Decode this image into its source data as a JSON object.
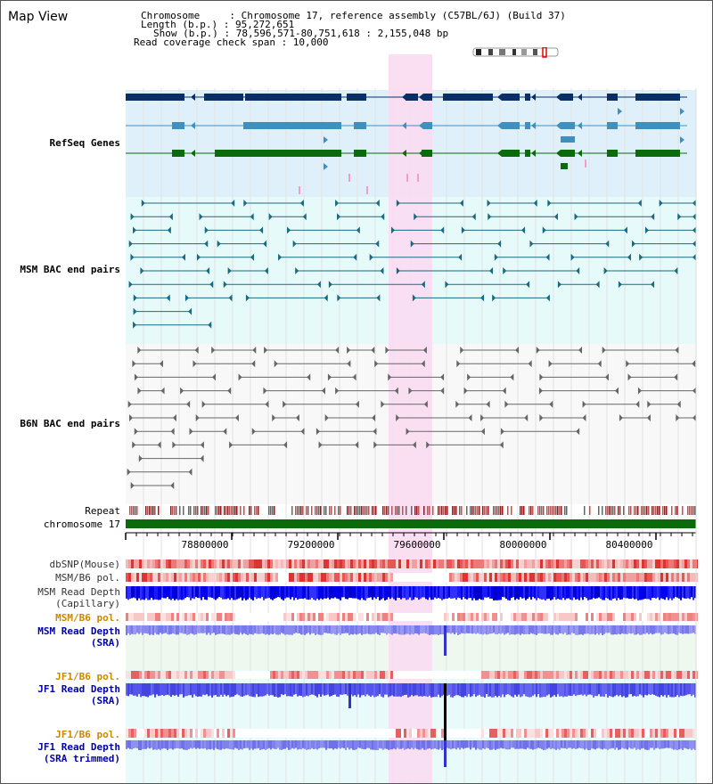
{
  "window_title": "Map View",
  "info": {
    "chromosome_line": "Chromosome     : Chromosome 17, reference assembly (C57BL/6J) (Build 37)",
    "length_line": "Length (b.p.) : 95,272,651",
    "show_line": "Show (b.p.) : 78,596,571-80,751,618 : 2,155,048 bp",
    "span_line": "Read coverage check span : 10,000"
  },
  "tracks": {
    "refseq": {
      "label": "RefSeq Genes",
      "color": "#0000aa"
    },
    "msm_bac": {
      "label": "MSM BAC end pairs",
      "color": "#006677"
    },
    "b6n_bac": {
      "label": "B6N BAC end pairs",
      "color": "#555555"
    },
    "repeat": {
      "label": "Repeat"
    },
    "chromosome": {
      "label": "chromosome 17"
    },
    "dbsnp": {
      "label": "dbSNP(Mouse)"
    },
    "msm_pol_cap": {
      "label": "MSM/B6 pol."
    },
    "msm_depth_cap": {
      "label": "MSM Read Depth",
      "label2": "(Capillary)"
    },
    "msm_pol_sra": {
      "label": "MSM/B6 pol.",
      "color": "#cc8800"
    },
    "msm_depth_sra": {
      "label": "MSM Read Depth",
      "label2": "(SRA)",
      "color": "#0000aa"
    },
    "jf1_pol": {
      "label": "JF1/B6 pol.",
      "color": "#cc8800"
    },
    "jf1_depth": {
      "label": "JF1 Read Depth",
      "label2": "(SRA)",
      "color": "#0000aa"
    },
    "jf1_pol2": {
      "label": "JF1/B6 pol.",
      "color": "#cc8800"
    },
    "jf1_depth_trim": {
      "label": "JF1 Read Depth",
      "label2": "(SRA trimmed)",
      "color": "#0000aa"
    }
  },
  "axis": {
    "ticks": [
      "78800000",
      "79200000",
      "79600000",
      "80000000",
      "80400000"
    ]
  },
  "colors": {
    "refseq_bg": "#dff0fa",
    "msm_bg": "#e6fafa",
    "b6n_bg": "#f8f8f8",
    "highlight": "#fadcf2",
    "dark_blue": "#0a2f66",
    "mid_blue": "#3f90bd",
    "green": "#0b6a0b",
    "chromosome_bar": "#0b6a0b"
  }
}
